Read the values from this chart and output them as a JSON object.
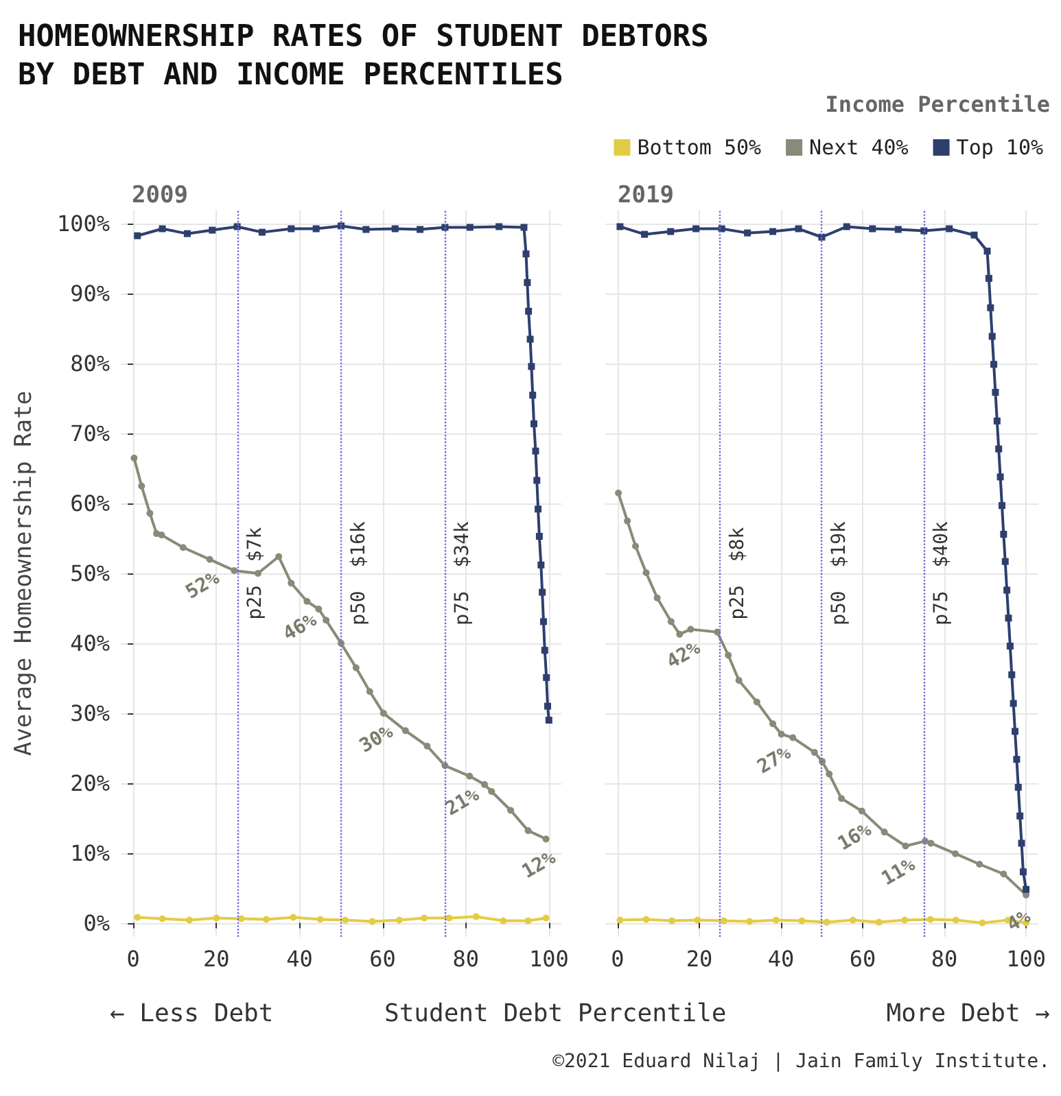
{
  "chart_data": [
    {
      "type": "line",
      "title": "HOMEOWNERSHIP RATES OF STUDENT DEBTORS BY DEBT AND INCOME PERCENTILES",
      "subtitle": "2009",
      "xlabel": "Student Debt Percentile",
      "ylabel": "Average Homeownership Rate",
      "legend_title": "Income Percentile",
      "legend": "top right",
      "grid": true,
      "marker": "circle",
      "line_style": "solid",
      "xlim": [
        -3,
        103
      ],
      "xticks": [
        0,
        20,
        40,
        60,
        80,
        100
      ],
      "ylim": [
        -2,
        102
      ],
      "yticks": [
        {
          "value": 0,
          "label": "0%"
        },
        {
          "value": 10,
          "label": "10%"
        },
        {
          "value": 20,
          "label": "20%"
        },
        {
          "value": 30,
          "label": "30%"
        },
        {
          "value": 40,
          "label": "40%"
        },
        {
          "value": 50,
          "label": "50%"
        },
        {
          "value": 60,
          "label": "60%"
        },
        {
          "value": 70,
          "label": "70%"
        },
        {
          "value": 80,
          "label": "80%"
        },
        {
          "value": 90,
          "label": "90%"
        },
        {
          "value": 100,
          "label": "100%"
        }
      ],
      "series": [
        {
          "name": "Bottom 50%",
          "color": "#e3cc45",
          "x": [
            1,
            7,
            13.5,
            20,
            26,
            32,
            38.5,
            45,
            51,
            57.5,
            64,
            70,
            76,
            82.5,
            89,
            95,
            99.3
          ],
          "values": [
            0.8,
            0.6,
            0.4,
            0.7,
            0.6,
            0.5,
            0.8,
            0.5,
            0.4,
            0.2,
            0.4,
            0.7,
            0.7,
            0.9,
            0.3,
            0.3,
            0.7
          ]
        },
        {
          "name": "Next 40%",
          "color": "#8a8a78",
          "x": [
            0.2,
            2,
            4,
            5.6,
            6.8,
            12,
            18.4,
            24.3,
            30,
            35,
            38,
            41.8,
            44.6,
            46.4,
            50,
            53.6,
            56.9,
            60.2,
            65.5,
            70.7,
            75,
            80.9,
            84.5,
            86.2,
            90.8,
            95,
            99.3
          ],
          "values": [
            66.5,
            62.5,
            58.6,
            55.7,
            55.5,
            53.7,
            52,
            50.4,
            50,
            52.4,
            48.6,
            46,
            44.9,
            43.3,
            40,
            36.5,
            33.1,
            30,
            27.5,
            25.3,
            22.5,
            21,
            19.8,
            18.8,
            16.1,
            13.2,
            12
          ]
        },
        {
          "name": "Top 10%",
          "color": "#2e3f6e",
          "marker": "square",
          "x": [
            1,
            7,
            13,
            19,
            25,
            31,
            38,
            44,
            50,
            56,
            63,
            69,
            75,
            81,
            88,
            94,
            94.5,
            94.8,
            95.1,
            95.5,
            95.8,
            96.1,
            96.4,
            96.8,
            97.1,
            97.4,
            97.7,
            98.1,
            98.4,
            98.7,
            99,
            99.4,
            99.7,
            100
          ],
          "values": [
            98.3,
            99.3,
            98.6,
            99.1,
            99.6,
            98.8,
            99.3,
            99.3,
            99.7,
            99.2,
            99.3,
            99.2,
            99.5,
            99.5,
            99.6,
            99.5,
            95.7,
            91.6,
            87.5,
            83.5,
            79.6,
            75.5,
            71.4,
            67.5,
            63.3,
            59.2,
            55.3,
            51.2,
            47.3,
            43.1,
            39,
            35.1,
            31,
            29
          ]
        }
      ],
      "ref_lines": [
        {
          "axis": "x",
          "value": 25,
          "label": "p25  $7k",
          "color": "#6b6bdb",
          "line_style": "dotted"
        },
        {
          "axis": "x",
          "value": 50,
          "label": "p50  $16k",
          "color": "#6b6bdb",
          "line_style": "dotted"
        },
        {
          "axis": "x",
          "value": 75,
          "label": "p75  $34k",
          "color": "#6b6bdb",
          "line_style": "dotted"
        }
      ],
      "annotations": [
        "← Less Debt",
        "More Debt →",
        "©2021 Eduard Nilaj | Jain Family Institute.",
        {
          "text": "52%",
          "x": 18.4,
          "y": 52
        },
        {
          "text": "46%",
          "x": 41.8,
          "y": 46
        },
        {
          "text": "30%",
          "x": 60.2,
          "y": 30
        },
        {
          "text": "21%",
          "x": 80.9,
          "y": 21
        },
        {
          "text": "12%",
          "x": 99.3,
          "y": 12
        }
      ]
    },
    {
      "type": "line",
      "subtitle": "2019",
      "grid": true,
      "marker": "circle",
      "line_style": "solid",
      "tick_labels": "x",
      "xlim": [
        -3,
        103
      ],
      "xticks": [
        0,
        20,
        40,
        60,
        80,
        100
      ],
      "ylim": [
        -2,
        102
      ],
      "yticks": [
        0,
        10,
        20,
        30,
        40,
        50,
        60,
        70,
        80,
        90,
        100
      ],
      "series": [
        {
          "color": "#e3cc45",
          "x": [
            0.6,
            7,
            13.3,
            19.6,
            26,
            32.3,
            38.8,
            45.1,
            51.2,
            57.6,
            64,
            70.3,
            76.6,
            82.8,
            89.3,
            95.6,
            100
          ],
          "values": [
            0.4,
            0.5,
            0.3,
            0.4,
            0.3,
            0.2,
            0.4,
            0.3,
            0.1,
            0.4,
            0.1,
            0.4,
            0.5,
            0.4,
            0,
            0.4,
            0
          ]
        },
        {
          "color": "#8a8a78",
          "x": [
            0.2,
            2.4,
            4.4,
            7,
            9.7,
            13.1,
            15.2,
            17.9,
            24.4,
            27.1,
            29.7,
            34.1,
            38,
            40.1,
            42.9,
            48.2,
            50.1,
            51.8,
            54.8,
            59.8,
            65.3,
            70.5,
            75.3,
            76.7,
            82.7,
            88.6,
            94.5,
            100
          ],
          "values": [
            61.5,
            57.5,
            53.9,
            50.1,
            46.5,
            43.1,
            41.3,
            42,
            41.6,
            38.3,
            34.7,
            31.6,
            28.5,
            27,
            26.5,
            24.4,
            23.1,
            21.3,
            17.8,
            16,
            13,
            11,
            11.7,
            11.4,
            9.9,
            8.4,
            7,
            4
          ]
        },
        {
          "color": "#2e3f6e",
          "marker": "square",
          "x": [
            0.6,
            6.6,
            13,
            19.2,
            25.5,
            31.8,
            38,
            44.3,
            50,
            56.1,
            62.4,
            68.7,
            75,
            81.2,
            87.3,
            90.5,
            90.9,
            91.3,
            91.7,
            92.1,
            92.5,
            92.9,
            93.3,
            93.7,
            94.1,
            94.5,
            94.9,
            95.3,
            95.7,
            96.1,
            96.5,
            96.9,
            97.3,
            97.7,
            98.1,
            98.5,
            98.9,
            99.3,
            100
          ],
          "values": [
            99.6,
            98.5,
            98.9,
            99.3,
            99.3,
            98.7,
            98.9,
            99.3,
            98.1,
            99.6,
            99.3,
            99.2,
            99,
            99.3,
            98.4,
            96.1,
            92.2,
            88,
            83.9,
            79.9,
            75.9,
            71.8,
            67.8,
            63.8,
            59.7,
            55.6,
            51.7,
            47.6,
            43.6,
            39.6,
            35.5,
            31.4,
            27.4,
            23.4,
            19.4,
            15.3,
            11.4,
            7.3,
            4.8
          ]
        }
      ],
      "ref_lines": [
        {
          "axis": "x",
          "value": 25,
          "label": "p25  $8k",
          "color": "#6b6bdb",
          "line_style": "dotted"
        },
        {
          "axis": "x",
          "value": 50,
          "label": "p50  $19k",
          "color": "#6b6bdb",
          "line_style": "dotted"
        },
        {
          "axis": "x",
          "value": 75,
          "label": "p75  $40k",
          "color": "#6b6bdb",
          "line_style": "dotted"
        }
      ],
      "annotations": [
        {
          "text": "42%",
          "x": 17.9,
          "y": 42
        },
        {
          "text": "27%",
          "x": 40.1,
          "y": 27
        },
        {
          "text": "16%",
          "x": 59.8,
          "y": 16
        },
        {
          "text": "11%",
          "x": 70.5,
          "y": 11
        },
        {
          "text": "4%",
          "x": 100,
          "y": 4
        }
      ]
    }
  ]
}
